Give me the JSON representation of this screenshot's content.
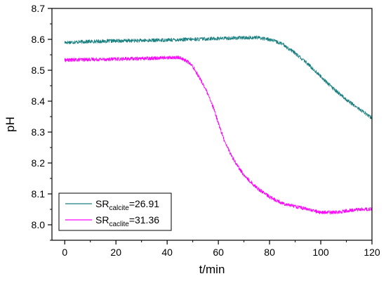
{
  "chart_data": {
    "type": "line",
    "title": "",
    "xlabel": "t/min",
    "ylabel": "pH",
    "xlim": [
      -5,
      120
    ],
    "ylim": [
      7.95,
      8.7
    ],
    "xticks": [
      0,
      20,
      40,
      60,
      80,
      100,
      120
    ],
    "yticks": [
      8.0,
      8.1,
      8.2,
      8.3,
      8.4,
      8.5,
      8.6,
      8.7
    ],
    "xtick_labels": [
      "0",
      "20",
      "40",
      "60",
      "80",
      "100",
      "120"
    ],
    "ytick_labels": [
      "8.0",
      "8.1",
      "8.2",
      "8.3",
      "8.4",
      "8.5",
      "8.6",
      "8.7"
    ],
    "grid": false,
    "legend_position": "bottom-left",
    "series": [
      {
        "legend_main": "SR",
        "legend_sub": "calcite",
        "legend_value": "=26.91",
        "color": "#1a8080",
        "noise": 0.006,
        "x": [
          0,
          10,
          20,
          30,
          40,
          50,
          60,
          70,
          75,
          80,
          85,
          90,
          95,
          100,
          105,
          110,
          115,
          120
        ],
        "y": [
          8.59,
          8.593,
          8.595,
          8.596,
          8.598,
          8.6,
          8.603,
          8.605,
          8.606,
          8.6,
          8.585,
          8.555,
          8.52,
          8.48,
          8.44,
          8.405,
          8.375,
          8.345
        ]
      },
      {
        "legend_main": "SR",
        "legend_sub": "caclite",
        "legend_value": "=31.36",
        "color": "#ff00ff",
        "noise": 0.006,
        "x": [
          0,
          10,
          20,
          30,
          40,
          45,
          48,
          50,
          52,
          55,
          58,
          60,
          62,
          65,
          68,
          70,
          75,
          80,
          85,
          90,
          95,
          100,
          105,
          110,
          115,
          120
        ],
        "y": [
          8.533,
          8.535,
          8.536,
          8.538,
          8.541,
          8.541,
          8.528,
          8.512,
          8.485,
          8.44,
          8.38,
          8.33,
          8.28,
          8.225,
          8.185,
          8.16,
          8.12,
          8.09,
          8.07,
          8.06,
          8.05,
          8.04,
          8.04,
          8.045,
          8.05,
          8.05
        ]
      }
    ]
  }
}
